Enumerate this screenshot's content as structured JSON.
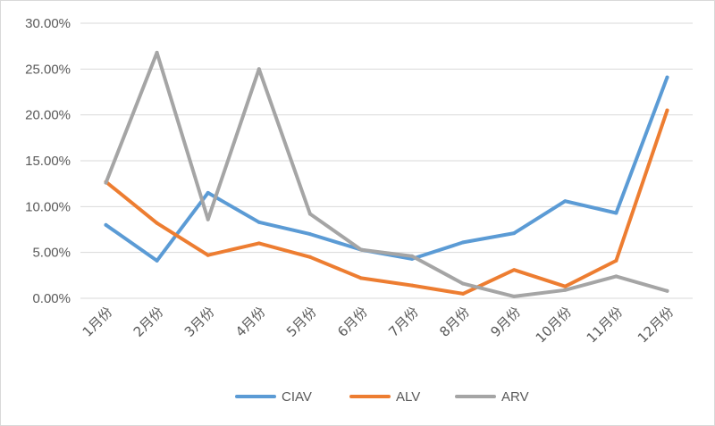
{
  "chart_data": {
    "type": "line",
    "title": "",
    "xlabel": "",
    "ylabel": "",
    "categories": [
      "1月份",
      "2月份",
      "3月份",
      "4月份",
      "5月份",
      "6月份",
      "7月份",
      "8月份",
      "9月份",
      "10月份",
      "11月份",
      "12月份"
    ],
    "ylim": [
      0,
      30
    ],
    "yticks": [
      0,
      5,
      10,
      15,
      20,
      25,
      30
    ],
    "ytick_labels": [
      "0.00%",
      "5.00%",
      "10.00%",
      "15.00%",
      "20.00%",
      "25.00%",
      "30.00%"
    ],
    "grid": true,
    "legend_position": "bottom",
    "series": [
      {
        "name": "CIAV",
        "color": "#5B9BD5",
        "values": [
          8.0,
          4.1,
          11.5,
          8.3,
          7.0,
          5.3,
          4.3,
          6.1,
          7.1,
          10.6,
          9.3,
          24.1
        ]
      },
      {
        "name": "ALV",
        "color": "#ED7D31",
        "values": [
          12.7,
          8.2,
          4.7,
          6.0,
          4.5,
          2.2,
          1.4,
          0.5,
          3.1,
          1.3,
          4.1,
          20.5
        ]
      },
      {
        "name": "ARV",
        "color": "#A5A5A5",
        "values": [
          12.6,
          26.8,
          8.6,
          25.0,
          9.2,
          5.3,
          4.6,
          1.6,
          0.2,
          0.9,
          2.4,
          0.8
        ]
      }
    ]
  }
}
